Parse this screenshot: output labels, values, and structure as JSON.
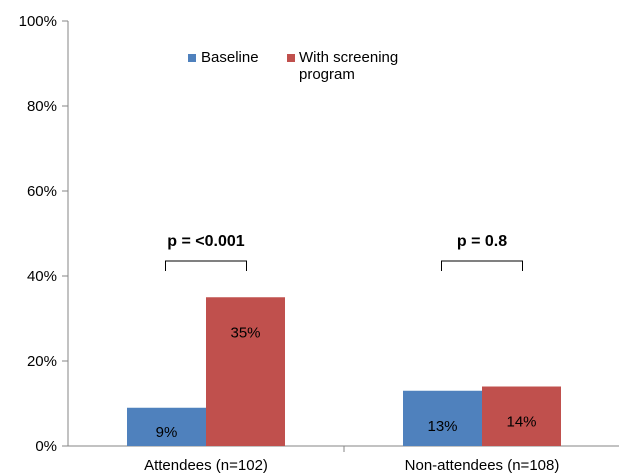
{
  "chart_data": {
    "type": "bar",
    "categories": [
      "Attendees (n=102)",
      "Non-attendees (n=108)"
    ],
    "series": [
      {
        "name": "Baseline",
        "values": [
          9,
          13
        ],
        "labels": [
          "9%",
          "13%"
        ],
        "color": "#4f81bd"
      },
      {
        "name": "With screening program",
        "legend_lines": [
          "With screening",
          "program"
        ],
        "values": [
          35,
          14
        ],
        "labels": [
          "35%",
          "14%"
        ],
        "color": "#c0504d"
      }
    ],
    "ylim": [
      0,
      100
    ],
    "yticks": [
      0,
      20,
      40,
      60,
      80,
      100
    ],
    "ytick_labels": [
      "0%",
      "20%",
      "40%",
      "60%",
      "80%",
      "100%"
    ],
    "grid": false,
    "legend_position": "top-center",
    "annotations": [
      {
        "text": "p = <0.001",
        "category": 0
      },
      {
        "text": "p = 0.8",
        "category": 1
      }
    ]
  }
}
